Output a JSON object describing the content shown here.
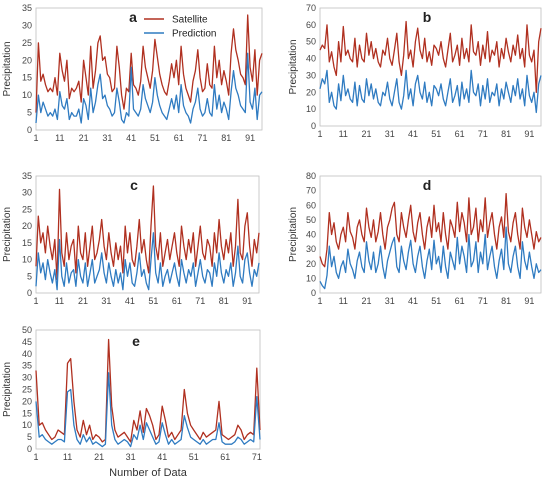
{
  "chart_data": [
    {
      "type": "line",
      "panel_label": "a",
      "ylabel": "Precipitation",
      "xlabel": "",
      "ylim": [
        0,
        35
      ],
      "yticks": [
        0,
        5,
        10,
        15,
        20,
        25,
        30,
        35
      ],
      "xticks": [
        1,
        11,
        21,
        31,
        41,
        51,
        61,
        71,
        81,
        91
      ],
      "n": 96,
      "legend": "top-center",
      "series": [
        {
          "name": "Satellite",
          "color": "#b03020",
          "values": [
            5,
            25,
            14,
            16,
            13,
            11,
            12,
            11,
            15,
            10,
            22,
            17,
            14,
            20,
            9,
            12,
            11,
            12,
            14,
            8,
            20,
            15,
            10,
            24,
            12,
            17,
            25,
            27,
            20,
            21,
            16,
            15,
            11,
            12,
            24,
            18,
            10,
            6,
            12,
            11,
            22,
            13,
            12,
            10,
            14,
            24,
            18,
            15,
            12,
            17,
            26,
            21,
            16,
            13,
            11,
            10,
            14,
            19,
            15,
            20,
            13,
            24,
            16,
            12,
            10,
            8,
            14,
            17,
            23,
            15,
            11,
            12,
            19,
            13,
            12,
            24,
            15,
            20,
            13,
            17,
            14,
            10,
            22,
            29,
            23,
            20,
            16,
            15,
            13,
            33,
            18,
            14,
            23,
            10,
            20,
            22
          ]
        },
        {
          "name": "Prediction",
          "color": "#2f7bc1",
          "values": [
            2,
            10,
            5,
            8,
            6,
            4,
            5,
            4,
            6,
            3,
            11,
            7,
            6,
            9,
            3,
            5,
            4,
            4,
            6,
            2,
            9,
            7,
            3,
            12,
            5,
            8,
            13,
            16,
            9,
            10,
            7,
            6,
            4,
            5,
            12,
            8,
            3,
            2,
            5,
            4,
            18,
            6,
            5,
            4,
            6,
            13,
            9,
            7,
            5,
            8,
            15,
            10,
            7,
            5,
            4,
            3,
            6,
            9,
            6,
            10,
            5,
            13,
            7,
            5,
            4,
            2,
            6,
            8,
            12,
            6,
            4,
            5,
            9,
            5,
            4,
            13,
            6,
            10,
            5,
            8,
            6,
            3,
            11,
            17,
            12,
            10,
            7,
            6,
            5,
            22,
            8,
            6,
            12,
            3,
            10,
            11
          ]
        }
      ]
    },
    {
      "type": "line",
      "panel_label": "b",
      "ylabel": "Precipitation",
      "xlabel": "",
      "ylim": [
        0,
        70
      ],
      "yticks": [
        0,
        10,
        20,
        30,
        40,
        50,
        60,
        70
      ],
      "xticks": [
        1,
        11,
        21,
        31,
        41,
        51,
        61,
        71,
        81,
        91
      ],
      "n": 96,
      "legend": "none",
      "series": [
        {
          "name": "Satellite",
          "color": "#b03020",
          "values": [
            45,
            48,
            46,
            60,
            38,
            44,
            35,
            30,
            50,
            38,
            59,
            42,
            45,
            40,
            38,
            52,
            35,
            48,
            40,
            38,
            55,
            42,
            50,
            40,
            46,
            38,
            35,
            45,
            42,
            52,
            40,
            36,
            45,
            55,
            38,
            30,
            42,
            62,
            40,
            45,
            35,
            50,
            58,
            45,
            40,
            52,
            38,
            44,
            36,
            48,
            46,
            42,
            50,
            40,
            35,
            45,
            55,
            38,
            42,
            48,
            36,
            52,
            40,
            46,
            38,
            60,
            44,
            42,
            50,
            36,
            48,
            40,
            56,
            38,
            45,
            42,
            50,
            35,
            46,
            40,
            52,
            44,
            38,
            48,
            42,
            54,
            40,
            46,
            35,
            60,
            42,
            38,
            45,
            20,
            50,
            58
          ]
        },
        {
          "name": "Prediction",
          "color": "#2f7bc1",
          "values": [
            22,
            28,
            25,
            33,
            14,
            20,
            12,
            10,
            25,
            15,
            30,
            18,
            22,
            16,
            14,
            26,
            12,
            24,
            16,
            14,
            28,
            18,
            25,
            16,
            22,
            14,
            12,
            20,
            18,
            26,
            16,
            12,
            20,
            28,
            14,
            10,
            18,
            33,
            16,
            22,
            12,
            25,
            30,
            20,
            16,
            26,
            14,
            20,
            12,
            24,
            22,
            18,
            25,
            16,
            12,
            20,
            28,
            14,
            18,
            24,
            12,
            26,
            16,
            22,
            14,
            33,
            20,
            18,
            25,
            12,
            24,
            16,
            28,
            14,
            20,
            18,
            25,
            12,
            22,
            16,
            26,
            20,
            14,
            24,
            18,
            28,
            16,
            22,
            12,
            30,
            18,
            14,
            20,
            8,
            25,
            30
          ]
        }
      ]
    },
    {
      "type": "line",
      "panel_label": "c",
      "ylabel": "Precipitation",
      "xlabel": "",
      "ylim": [
        0,
        35
      ],
      "yticks": [
        0,
        5,
        10,
        15,
        20,
        25,
        30,
        35
      ],
      "xticks": [
        1,
        11,
        21,
        31,
        41,
        51,
        61,
        71,
        81,
        91
      ],
      "n": 96,
      "legend": "none",
      "series": [
        {
          "name": "Satellite",
          "color": "#b03020",
          "values": [
            8,
            23,
            15,
            18,
            12,
            20,
            14,
            10,
            16,
            4,
            31,
            12,
            8,
            18,
            10,
            14,
            16,
            6,
            20,
            12,
            10,
            18,
            8,
            14,
            20,
            10,
            12,
            16,
            22,
            14,
            10,
            18,
            12,
            8,
            15,
            10,
            14,
            6,
            20,
            12,
            18,
            10,
            8,
            14,
            22,
            12,
            16,
            10,
            6,
            20,
            32,
            14,
            10,
            18,
            8,
            12,
            16,
            10,
            14,
            18,
            12,
            8,
            20,
            14,
            10,
            16,
            12,
            18,
            8,
            14,
            20,
            12,
            10,
            16,
            14,
            8,
            18,
            12,
            22,
            14,
            10,
            16,
            12,
            18,
            8,
            14,
            28,
            12,
            10,
            20,
            24,
            14,
            8,
            16,
            12,
            18
          ]
        },
        {
          "name": "Prediction",
          "color": "#2f7bc1",
          "values": [
            2,
            12,
            6,
            9,
            4,
            10,
            6,
            3,
            7,
            1,
            16,
            5,
            2,
            9,
            3,
            6,
            7,
            2,
            10,
            5,
            3,
            9,
            2,
            6,
            10,
            3,
            5,
            7,
            12,
            6,
            3,
            9,
            5,
            2,
            7,
            3,
            6,
            1,
            10,
            5,
            9,
            3,
            2,
            6,
            12,
            5,
            7,
            3,
            1,
            10,
            18,
            6,
            3,
            9,
            2,
            5,
            7,
            3,
            6,
            9,
            5,
            2,
            10,
            6,
            3,
            7,
            5,
            9,
            2,
            6,
            10,
            5,
            3,
            7,
            6,
            2,
            9,
            5,
            12,
            6,
            3,
            7,
            5,
            9,
            2,
            6,
            14,
            5,
            3,
            10,
            12,
            6,
            2,
            7,
            5,
            9
          ]
        }
      ]
    },
    {
      "type": "line",
      "panel_label": "d",
      "ylabel": "Precipitation",
      "xlabel": "",
      "ylim": [
        0,
        80
      ],
      "yticks": [
        0,
        10,
        20,
        30,
        40,
        50,
        60,
        70,
        80
      ],
      "xticks": [
        1,
        11,
        21,
        31,
        41,
        51,
        61,
        71,
        81,
        91
      ],
      "n": 96,
      "legend": "none",
      "series": [
        {
          "name": "Satellite",
          "color": "#b03020",
          "values": [
            25,
            20,
            18,
            30,
            55,
            40,
            48,
            35,
            30,
            40,
            45,
            35,
            55,
            42,
            38,
            30,
            45,
            50,
            40,
            35,
            58,
            45,
            38,
            50,
            35,
            42,
            55,
            40,
            30,
            45,
            50,
            58,
            62,
            40,
            35,
            55,
            45,
            38,
            50,
            60,
            42,
            35,
            48,
            55,
            40,
            30,
            45,
            52,
            38,
            60,
            42,
            48,
            35,
            55,
            40,
            30,
            50,
            45,
            38,
            62,
            42,
            55,
            48,
            35,
            65,
            40,
            45,
            58,
            35,
            50,
            42,
            65,
            38,
            48,
            55,
            40,
            30,
            45,
            52,
            38,
            68,
            42,
            35,
            48,
            55,
            40,
            30,
            58,
            45,
            38,
            50,
            40,
            30,
            42,
            35,
            38
          ]
        },
        {
          "name": "Prediction",
          "color": "#2f7bc1",
          "values": [
            8,
            5,
            3,
            12,
            32,
            18,
            25,
            14,
            10,
            18,
            22,
            14,
            30,
            20,
            16,
            10,
            22,
            28,
            18,
            14,
            35,
            22,
            16,
            28,
            14,
            20,
            32,
            18,
            10,
            22,
            28,
            34,
            38,
            18,
            14,
            32,
            22,
            16,
            28,
            36,
            20,
            14,
            25,
            32,
            18,
            10,
            22,
            30,
            16,
            36,
            20,
            25,
            14,
            32,
            18,
            10,
            28,
            22,
            16,
            38,
            20,
            32,
            25,
            14,
            40,
            18,
            22,
            35,
            14,
            28,
            20,
            40,
            16,
            25,
            32,
            18,
            10,
            22,
            30,
            16,
            45,
            20,
            14,
            25,
            32,
            18,
            10,
            35,
            22,
            16,
            28,
            18,
            10,
            20,
            14,
            16
          ]
        }
      ]
    },
    {
      "type": "line",
      "panel_label": "e",
      "ylabel": "Precipitation",
      "xlabel": "Number of Data",
      "ylim": [
        0,
        50
      ],
      "yticks": [
        0,
        5,
        10,
        15,
        20,
        25,
        30,
        35,
        40,
        45,
        50
      ],
      "xticks": [
        1,
        11,
        21,
        31,
        41,
        51,
        61,
        71
      ],
      "n": 72,
      "legend": "none",
      "series": [
        {
          "name": "Satellite",
          "color": "#b03020",
          "values": [
            33,
            10,
            11,
            8,
            6,
            4,
            5,
            8,
            7,
            6,
            36,
            38,
            20,
            8,
            5,
            12,
            6,
            10,
            4,
            6,
            5,
            3,
            4,
            46,
            18,
            8,
            5,
            6,
            7,
            5,
            3,
            12,
            8,
            16,
            7,
            17,
            14,
            10,
            4,
            6,
            18,
            12,
            5,
            7,
            4,
            6,
            8,
            25,
            15,
            10,
            8,
            6,
            4,
            7,
            5,
            6,
            7,
            8,
            20,
            6,
            5,
            4,
            5,
            6,
            10,
            8,
            4,
            6,
            7,
            6,
            34,
            8
          ]
        },
        {
          "name": "Prediction",
          "color": "#2f7bc1",
          "values": [
            20,
            5,
            6,
            4,
            3,
            2,
            3,
            4,
            4,
            3,
            24,
            25,
            10,
            4,
            2,
            6,
            3,
            5,
            2,
            3,
            2,
            1,
            2,
            32,
            10,
            4,
            2,
            3,
            4,
            3,
            1,
            6,
            4,
            10,
            4,
            11,
            8,
            5,
            2,
            3,
            11,
            6,
            2,
            4,
            2,
            3,
            4,
            14,
            9,
            5,
            4,
            3,
            2,
            4,
            2,
            3,
            4,
            4,
            11,
            3,
            2,
            2,
            2,
            3,
            5,
            4,
            2,
            3,
            4,
            3,
            22,
            4
          ]
        }
      ]
    }
  ]
}
